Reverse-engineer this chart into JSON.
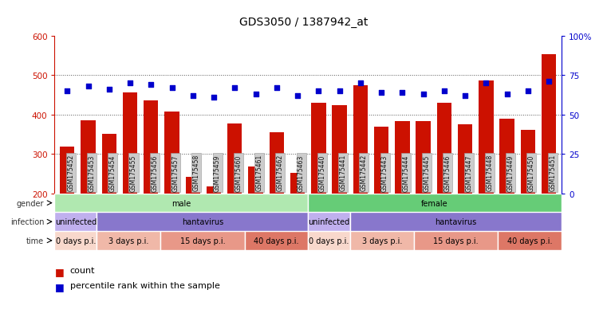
{
  "title": "GDS3050 / 1387942_at",
  "samples": [
    "GSM175452",
    "GSM175453",
    "GSM175454",
    "GSM175455",
    "GSM175456",
    "GSM175457",
    "GSM175458",
    "GSM175459",
    "GSM175460",
    "GSM175461",
    "GSM175462",
    "GSM175463",
    "GSM175440",
    "GSM175441",
    "GSM175442",
    "GSM175443",
    "GSM175444",
    "GSM175445",
    "GSM175446",
    "GSM175447",
    "GSM175448",
    "GSM175449",
    "GSM175450",
    "GSM175451"
  ],
  "counts": [
    318,
    385,
    350,
    455,
    435,
    408,
    243,
    218,
    378,
    268,
    354,
    252,
    430,
    424,
    474,
    370,
    383,
    383,
    429,
    375,
    487,
    390,
    362,
    553
  ],
  "percentiles": [
    65,
    68,
    66,
    70,
    69,
    67,
    62,
    61,
    67,
    63,
    67,
    62,
    65,
    65,
    70,
    64,
    64,
    63,
    65,
    62,
    70,
    63,
    65,
    71
  ],
  "bar_color": "#cc1100",
  "dot_color": "#0000cc",
  "ylim_left": [
    200,
    600
  ],
  "ylim_right": [
    0,
    100
  ],
  "yticks_left": [
    200,
    300,
    400,
    500,
    600
  ],
  "yticks_right": [
    0,
    25,
    50,
    75,
    100
  ],
  "grid_lines": [
    300,
    400,
    500
  ],
  "gender_blocks": [
    {
      "text": "male",
      "start": 0,
      "end": 12,
      "color": "#b0e8b0"
    },
    {
      "text": "female",
      "start": 12,
      "end": 24,
      "color": "#66cc77"
    }
  ],
  "infection_blocks": [
    {
      "text": "uninfected",
      "start": 0,
      "end": 2,
      "color": "#c0b0ee"
    },
    {
      "text": "hantavirus",
      "start": 2,
      "end": 12,
      "color": "#8877cc"
    },
    {
      "text": "uninfected",
      "start": 12,
      "end": 14,
      "color": "#c0b0ee"
    },
    {
      "text": "hantavirus",
      "start": 14,
      "end": 24,
      "color": "#8877cc"
    }
  ],
  "time_blocks": [
    {
      "text": "0 days p.i.",
      "start": 0,
      "end": 2,
      "color": "#f8d8cc"
    },
    {
      "text": "3 days p.i.",
      "start": 2,
      "end": 5,
      "color": "#f0b8a8"
    },
    {
      "text": "15 days p.i.",
      "start": 5,
      "end": 9,
      "color": "#e89888"
    },
    {
      "text": "40 days p.i.",
      "start": 9,
      "end": 12,
      "color": "#dd7766"
    },
    {
      "text": "0 days p.i.",
      "start": 12,
      "end": 14,
      "color": "#f8d8cc"
    },
    {
      "text": "3 days p.i.",
      "start": 14,
      "end": 17,
      "color": "#f0b8a8"
    },
    {
      "text": "15 days p.i.",
      "start": 17,
      "end": 21,
      "color": "#e89888"
    },
    {
      "text": "40 days p.i.",
      "start": 21,
      "end": 24,
      "color": "#dd7766"
    }
  ],
  "row_label_color": "#333333",
  "tick_box_color": "#cccccc",
  "tick_box_edge": "#999999",
  "legend_count": "count",
  "legend_percentile": "percentile rank within the sample",
  "bg_color": "#ffffff",
  "left_axis_color": "#cc1100",
  "right_axis_color": "#0000cc",
  "title_fontsize": 10,
  "bar_width": 0.7
}
